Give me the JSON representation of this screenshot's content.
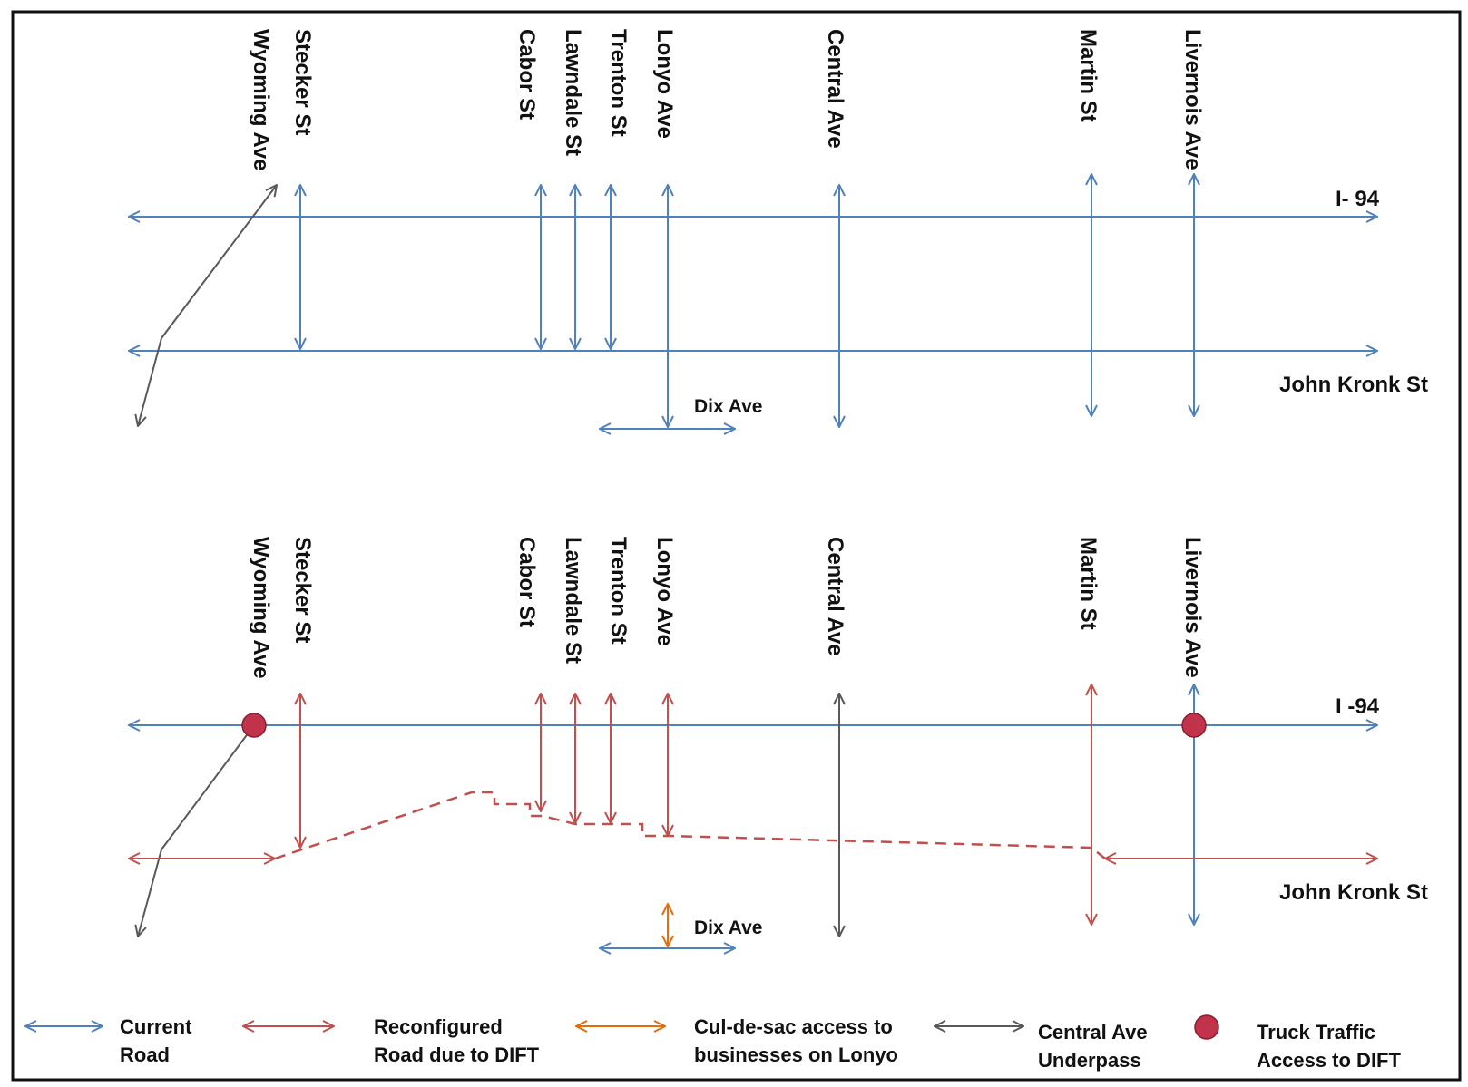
{
  "colors": {
    "current": "#4f81bd",
    "reconfigured": "#c0504d",
    "culdesac": "#e46c0a",
    "underpass": "#595959",
    "truck": "#c0334a",
    "frame": "#111111"
  },
  "top_panel": {
    "streets": {
      "wyoming": "Wyoming Ave",
      "stecker": "Stecker St",
      "cabor": "Cabor St",
      "lawndale": "Lawndale St",
      "trenton": "Trenton  St",
      "lonyo": "Lonyo Ave",
      "central": "Central Ave",
      "martin": "Martin St",
      "livernois": "Livernois Ave"
    },
    "i94": "I- 94",
    "john_kronk": "John Kronk St",
    "dix": "Dix Ave"
  },
  "bottom_panel": {
    "streets": {
      "wyoming": "Wyoming Ave",
      "stecker": "Stecker St",
      "cabor": "Cabor St",
      "lawndale": "Lawndale St",
      "trenton": "Trenton  St",
      "lonyo": "Lonyo Ave",
      "central": "Central Ave",
      "martin": "Martin St",
      "livernois": "Livernois Ave"
    },
    "i94": "I -94",
    "john_kronk": "John Kronk St",
    "dix": "Dix Ave"
  },
  "legend": {
    "current_line1": "Current",
    "current_line2": "Road",
    "reconfigured_line1": "Reconfigured",
    "reconfigured_line2": "Road due to DIFT",
    "culdesac_line1": "Cul-de-sac access to",
    "culdesac_line2": "businesses on Lonyo",
    "underpass_line1": "Central Ave",
    "underpass_line2": "Underpass",
    "truck_line1": "Truck Traffic",
    "truck_line2": "Access to DIFT"
  }
}
